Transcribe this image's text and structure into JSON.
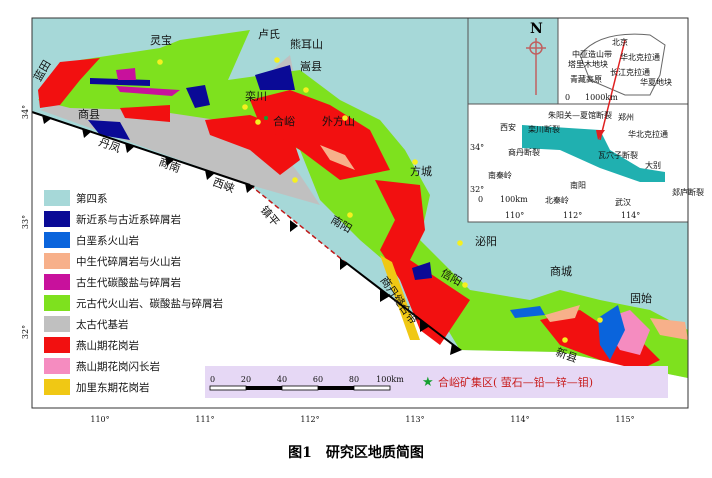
{
  "caption": "图1　研究区地质简图",
  "colors": {
    "quaternary": "#a6d8d8",
    "neogene": "#0a0a96",
    "cretaceous_volcanic": "#0a64dc",
    "mesozoic": "#f7b08a",
    "paleozoic": "#c8119c",
    "proterozoic": "#7ee11e",
    "archean": "#c0c0c0",
    "yanshan_granite": "#f21010",
    "yanshan_granodiorite": "#f58cc0",
    "caledonian_granite": "#f0c814",
    "scale_box": "#e6d8f5",
    "fault": "#c01818"
  },
  "legend": [
    {
      "label": "第四系",
      "color": "#a6d8d8"
    },
    {
      "label": "新近系与古近系碎屑岩",
      "color": "#0a0a96"
    },
    {
      "label": "白垩系火山岩",
      "color": "#0a64dc"
    },
    {
      "label": "中生代碎屑岩与火山岩",
      "color": "#f7b08a"
    },
    {
      "label": "古生代碳酸盐与碎屑岩",
      "color": "#c8119c"
    },
    {
      "label": "元古代火山岩、碳酸盐与碎屑岩",
      "color": "#7ee11e"
    },
    {
      "label": "太古代基岩",
      "color": "#c0c0c0"
    },
    {
      "label": "燕山期花岗岩",
      "color": "#f21010"
    },
    {
      "label": "燕山期花岗闪长岩",
      "color": "#f58cc0"
    },
    {
      "label": "加里东期花岗岩",
      "color": "#f0c814"
    }
  ],
  "scale": {
    "ticks": [
      "0",
      "20",
      "40",
      "60",
      "80",
      "100km"
    ]
  },
  "deposit_label": "合峪矿集区( 萤石—铅—锌—钼)",
  "longitudes": [
    "110°",
    "111°",
    "112°",
    "113°",
    "114°",
    "115°"
  ],
  "latitudes": [
    "34°",
    "33°",
    "32°"
  ],
  "places": [
    "蓝田",
    "灵宝",
    "卢氏",
    "熊耳山",
    "嵩县",
    "商县",
    "栾川",
    "合峪",
    "外方山",
    "丹凤",
    "商南",
    "西峡",
    "镇平",
    "南阳",
    "方城",
    "泌阳",
    "信阳",
    "商城",
    "固始",
    "新县",
    "商丹缝合带"
  ],
  "inset_top": {
    "north": "N",
    "labels": [
      "北京",
      "中亚造山带",
      "塔里木地块",
      "华北克拉通",
      "长江克拉通",
      "青藏高原",
      "华夏地块"
    ],
    "scale": [
      "0",
      "1000km"
    ]
  },
  "inset_bottom": {
    "labels": [
      "朱阳关—夏馆断裂",
      "西安",
      "郑州",
      "栾川断裂",
      "华北克拉通",
      "商丹断裂",
      "瓦穴子断裂",
      "大别",
      "南秦岭",
      "南阳",
      "北秦岭",
      "武汉",
      "郯庐断裂"
    ],
    "lat": [
      "34°",
      "32°"
    ],
    "lon": [
      "110°",
      "112°",
      "114°"
    ],
    "scale": [
      "0",
      "100km"
    ]
  }
}
